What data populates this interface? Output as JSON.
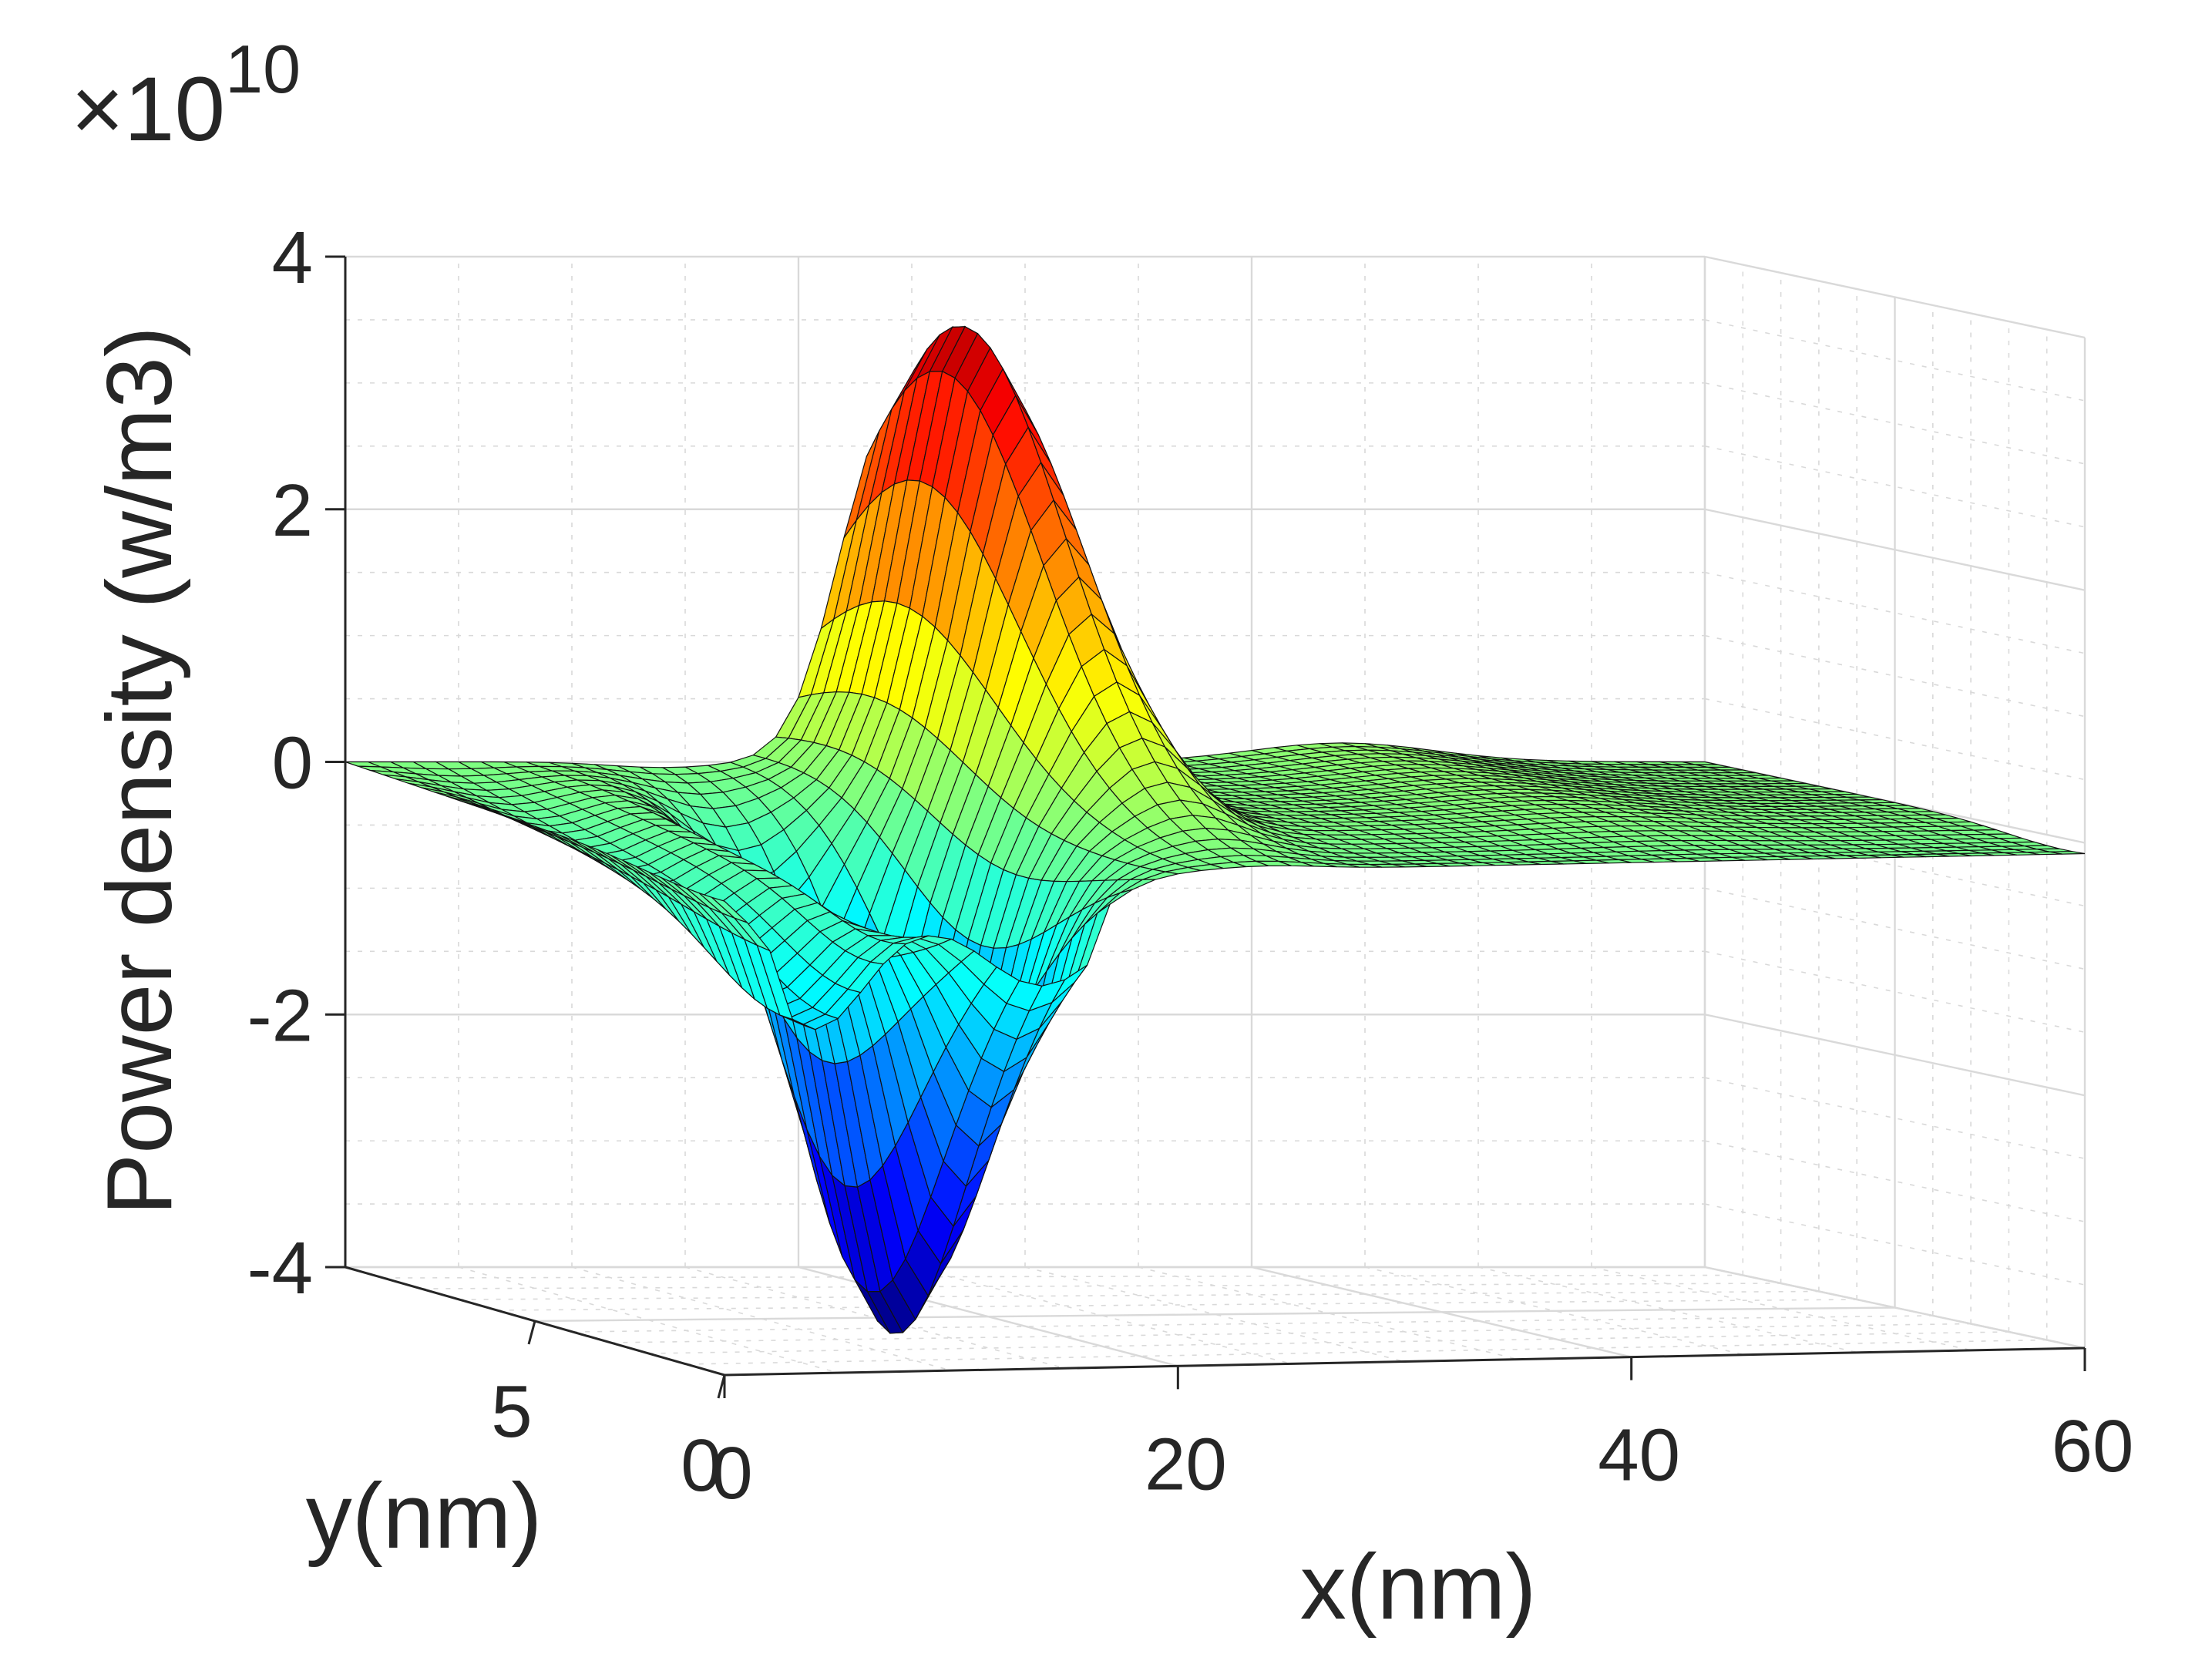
{
  "chart_data": {
    "type": "surface",
    "title": "",
    "xlabel": "x(nm)",
    "ylabel": "y(nm)",
    "zlabel": "Power density (w/m3)",
    "z_multiplier": {
      "prefix": "×10",
      "exponent": "10"
    },
    "xlim": [
      0,
      60
    ],
    "ylim": [
      0,
      10
    ],
    "zlim": [
      -4,
      4
    ],
    "x_ticks": [
      {
        "value": 0,
        "label": "0"
      },
      {
        "value": 20,
        "label": "20"
      },
      {
        "value": 40,
        "label": "40"
      },
      {
        "value": 60,
        "label": "60"
      }
    ],
    "y_ticks": [
      {
        "value": 0,
        "label": "0"
      },
      {
        "value": 5,
        "label": "5"
      }
    ],
    "z_ticks": [
      {
        "value": 4,
        "label": "4"
      },
      {
        "value": 2,
        "label": "2"
      },
      {
        "value": 0,
        "label": "0"
      },
      {
        "value": -2,
        "label": "-2"
      },
      {
        "value": -4,
        "label": "-4"
      }
    ],
    "grid": true,
    "colormap": "jet",
    "features": [
      {
        "kind": "peak",
        "x": 24,
        "y": 2,
        "z": 3.6
      },
      {
        "kind": "trough",
        "x": 14,
        "y": 6,
        "z": -4.0
      }
    ]
  }
}
